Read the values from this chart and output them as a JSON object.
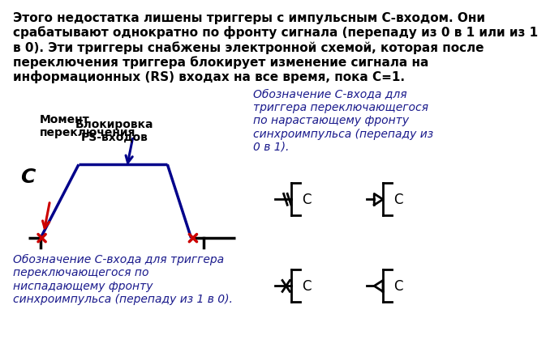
{
  "bg_color": "#ffffff",
  "title_text": "Этого недостатка лишены триггеры с импульсным С-входом. Они\nсрабатывают однократно по фронту сигнала (перепаду из 0 в 1 или из 1\nв 0). Эти триггеры снабжены электронной схемой, которая после\nпереключения триггера блокирует изменение сигнала на\nинформационных (RS) входах на все время, пока С=1.",
  "title_color": "#000000",
  "title_fontsize": 11,
  "label_moment": "Момент\nпереключения",
  "label_block": "Блокировка\nРS-входов",
  "label_c_italic": "C",
  "text_rising": "Обозначение С-входа для\nтриггера переключающегося\nпо нарастающему фронту\nсинхроимпульса (перепаду из\n0 в 1).",
  "text_falling": "Обозначение С-входа для триггера\nпереключающегося по\nниспадающему фронту\nсинхроимпульса (перепаду из 1 в 0).",
  "text_color_blue": "#1a1a8c",
  "arrow_red": "#cc0000",
  "arrow_blue": "#00008B",
  "signal_color": "#00008B",
  "cross_color": "#cc0000",
  "black": "#000000",
  "waveform_lw": 2.5,
  "sym_lw": 2.0
}
